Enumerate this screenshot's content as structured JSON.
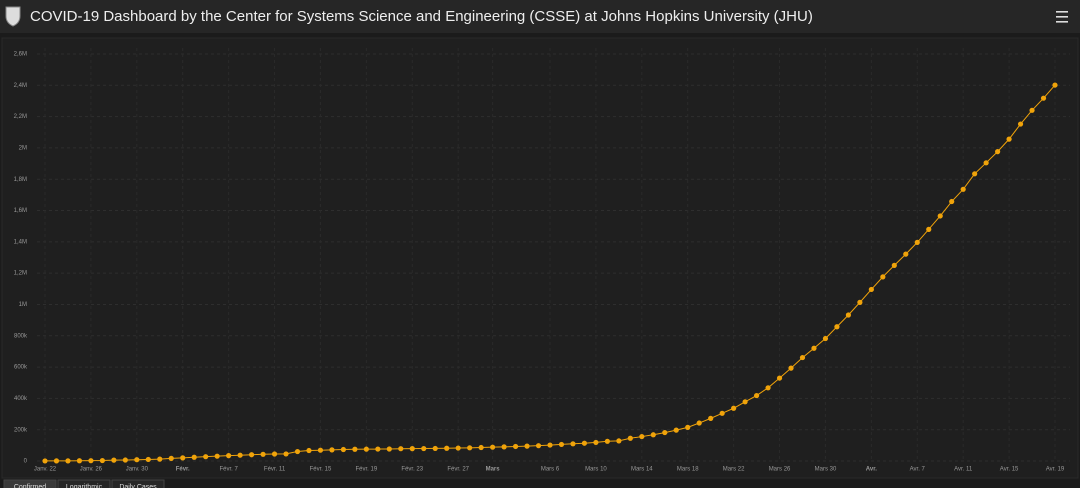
{
  "header": {
    "title": "COVID-19 Dashboard by the Center for Systems Science and Engineering (CSSE) at Johns Hopkins University (JHU)"
  },
  "chart_data": {
    "type": "line",
    "categories": [
      "Janv. 22",
      null,
      null,
      null,
      "Janv. 26",
      null,
      null,
      null,
      "Janv. 30",
      null,
      null,
      null,
      "Févr.",
      null,
      null,
      null,
      "Févr. 7",
      null,
      null,
      null,
      "Févr. 11",
      null,
      null,
      null,
      "Févr. 15",
      null,
      null,
      null,
      "Févr. 19",
      null,
      null,
      null,
      "Févr. 23",
      null,
      null,
      null,
      "Févr. 27",
      null,
      null,
      "Mars",
      null,
      null,
      null,
      null,
      "Mars 6",
      null,
      null,
      null,
      "Mars 10",
      null,
      null,
      null,
      "Mars 14",
      null,
      null,
      null,
      "Mars 18",
      null,
      null,
      null,
      "Mars 22",
      null,
      null,
      null,
      "Mars 26",
      null,
      null,
      null,
      "Mars 30",
      null,
      null,
      null,
      "Avr.",
      null,
      null,
      null,
      "Avr. 7",
      null,
      null,
      null,
      "Avr. 11",
      null,
      null,
      null,
      "Avr. 15",
      null,
      null,
      null,
      "Avr. 19"
    ],
    "series": [
      {
        "color": "#f0a30a",
        "values": [
          555,
          654,
          941,
          1434,
          2118,
          2927,
          5578,
          6166,
          8234,
          9927,
          12038,
          16787,
          19881,
          23892,
          27635,
          30794,
          34391,
          37120,
          40150,
          42762,
          44802,
          45221,
          60368,
          66885,
          69030,
          71224,
          73258,
          75136,
          75639,
          76197,
          76819,
          78572,
          78958,
          79561,
          80406,
          81388,
          82746,
          84112,
          86011,
          88369,
          90306,
          92840,
          95120,
          97886,
          101801,
          105847,
          109821,
          113590,
          118620,
          125875,
          128352,
          145205,
          156101,
          167454,
          181574,
          197102,
          214821,
          242570,
          272208,
          304507,
          336953,
          378235,
          418045,
          467653,
          529591,
          593291,
          660706,
          720117,
          782365,
          857487,
          932605,
          1013466,
          1095917,
          1176060,
          1249754,
          1321481,
          1396476,
          1479804,
          1565278,
          1657526,
          1735650,
          1834721,
          1904838,
          1976191,
          2056054,
          2152437,
          2240190,
          2317759,
          2401378
        ]
      }
    ],
    "ylim": [
      0,
      2600000
    ],
    "yticks": [
      0,
      {
        "value": 200000,
        "label": "200k"
      },
      {
        "value": 400000,
        "label": "400k"
      },
      {
        "value": 600000,
        "label": "600k"
      },
      {
        "value": 800000,
        "label": "800k"
      },
      {
        "value": 1000000,
        "label": "1M"
      },
      {
        "value": 1200000,
        "label": "1,2M"
      },
      {
        "value": 1400000,
        "label": "1,4M"
      },
      {
        "value": 1600000,
        "label": "1,6M"
      },
      {
        "value": 1800000,
        "label": "1,8M"
      },
      {
        "value": 2000000,
        "label": "2M"
      },
      {
        "value": 2200000,
        "label": "2,2M"
      },
      {
        "value": 2400000,
        "label": "2,4M"
      },
      {
        "value": 2600000,
        "label": "2,6M"
      }
    ],
    "grid": true
  },
  "tabs": [
    "Confirmed",
    "Logarithmic",
    "Daily Cases"
  ]
}
